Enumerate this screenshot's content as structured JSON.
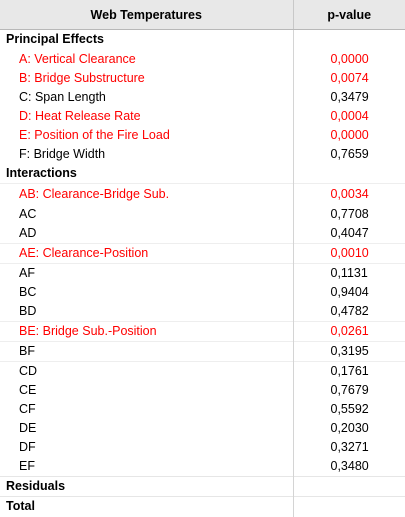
{
  "header": {
    "col1": "Web Temperatures",
    "col2": "p-value"
  },
  "sections": [
    {
      "title": "Principal Effects",
      "rows": [
        {
          "label": "A: Vertical Clearance",
          "value": "0,0000",
          "sig": true
        },
        {
          "label": "B: Bridge Substructure",
          "value": "0,0074",
          "sig": true
        },
        {
          "label": "C: Span Length",
          "value": "0,3479",
          "sig": false
        },
        {
          "label": "D: Heat Release Rate",
          "value": "0,0004",
          "sig": true
        },
        {
          "label": "E: Position of the Fire Load",
          "value": "0,0000",
          "sig": true
        },
        {
          "label": "F: Bridge Width",
          "value": "0,7659",
          "sig": false
        }
      ]
    },
    {
      "title": "Interactions",
      "rows": [
        {
          "label": "AB: Clearance-Bridge Sub.",
          "value": "0,0034",
          "sig": true
        },
        {
          "label": "AC",
          "value": "0,7708",
          "sig": false
        },
        {
          "label": "AD",
          "value": "0,4047",
          "sig": false
        },
        {
          "label": "AE: Clearance-Position",
          "value": "0,0010",
          "sig": true
        },
        {
          "label": "AF",
          "value": "0,1131",
          "sig": false
        },
        {
          "label": "BC",
          "value": "0,9404",
          "sig": false
        },
        {
          "label": "BD",
          "value": "0,4782",
          "sig": false
        },
        {
          "label": "BE: Bridge Sub.-Position",
          "value": "0,0261",
          "sig": true
        },
        {
          "label": "BF",
          "value": "0,3195",
          "sig": false
        },
        {
          "label": "CD",
          "value": "0,1761",
          "sig": false
        },
        {
          "label": "CE",
          "value": "0,7679",
          "sig": false
        },
        {
          "label": "CF",
          "value": "0,5592",
          "sig": false
        },
        {
          "label": "DE",
          "value": "0,2030",
          "sig": false
        },
        {
          "label": "DF",
          "value": "0,3271",
          "sig": false
        },
        {
          "label": "EF",
          "value": "0,3480",
          "sig": false
        }
      ]
    }
  ],
  "summary": [
    "Residuals",
    "Total"
  ],
  "colors": {
    "significant": "#ff0000",
    "normal": "#000000",
    "header_bg": "#e8e8e8"
  }
}
